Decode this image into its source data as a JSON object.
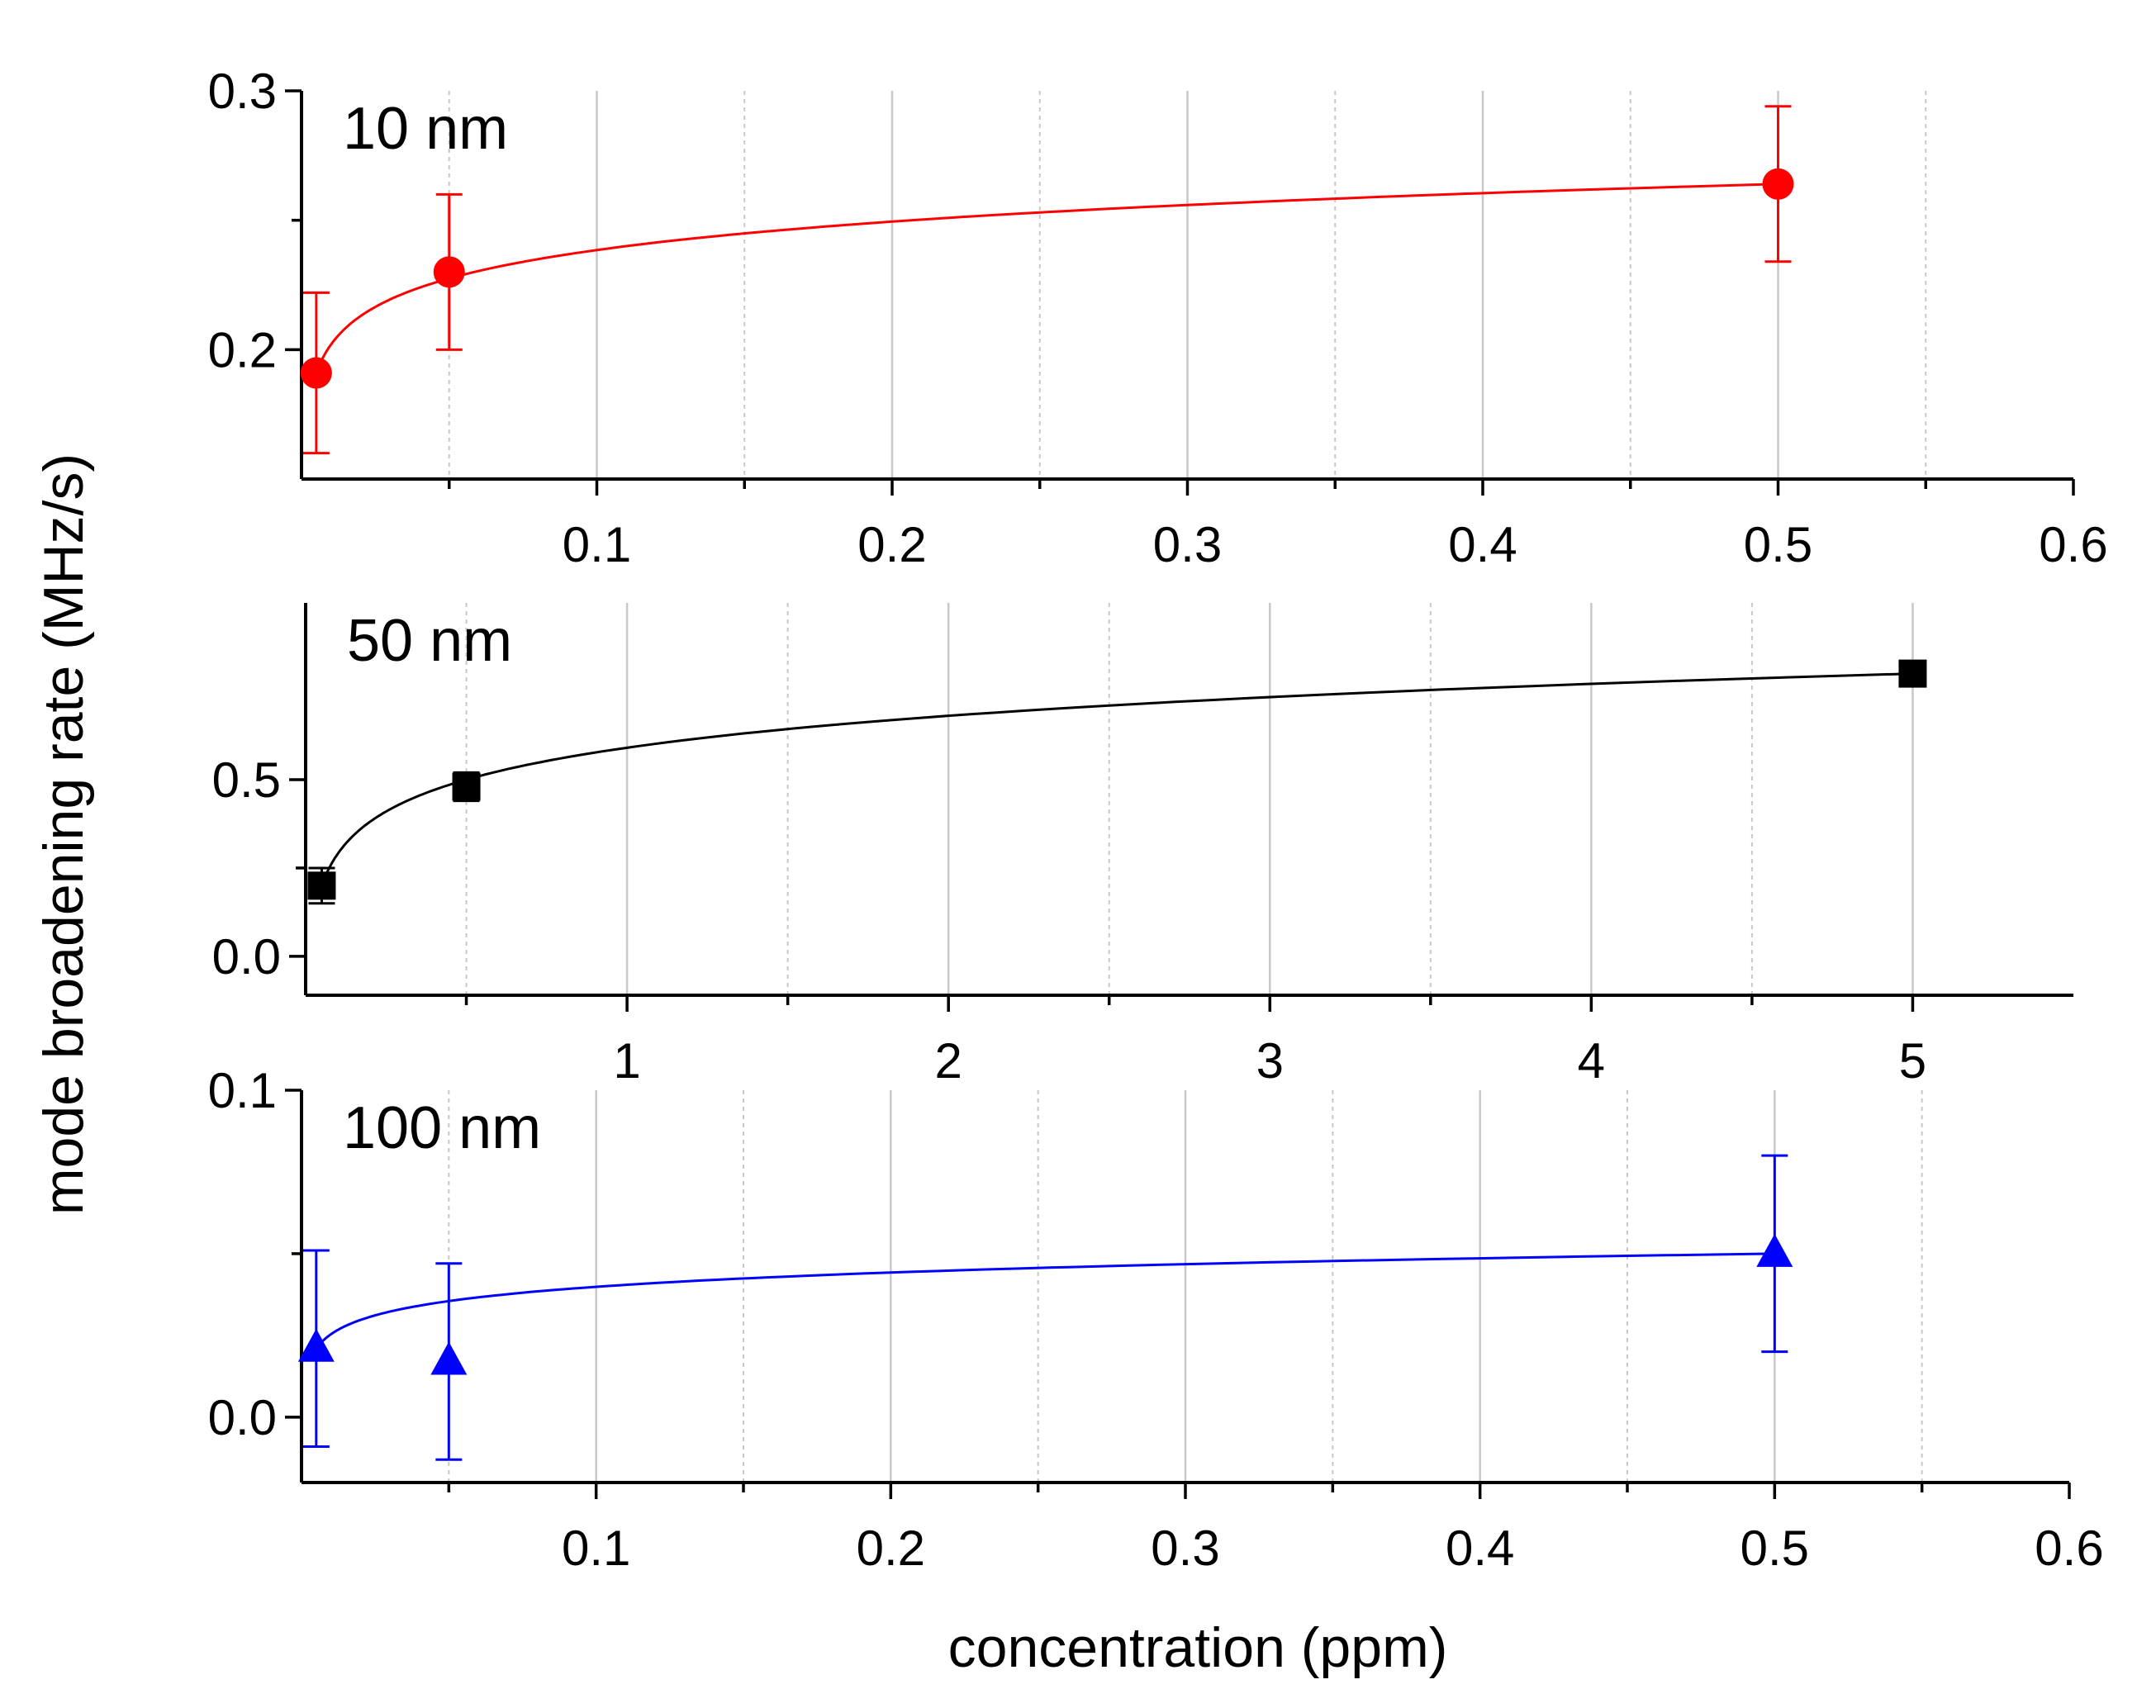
{
  "chart_data": [
    {
      "type": "scatter",
      "label": "10 nm",
      "color": "#ff0000",
      "marker": "circle",
      "ylim": [
        0.15,
        0.3
      ],
      "xlim": [
        0,
        0.6
      ],
      "yticks": [
        {
          "value": 0.2,
          "label": "0.2"
        },
        {
          "value": 0.3,
          "label": "0.3"
        }
      ],
      "xticks": [
        {
          "value": 0.1,
          "label": "0.1"
        },
        {
          "value": 0.2,
          "label": "0.2"
        },
        {
          "value": 0.3,
          "label": "0.3"
        },
        {
          "value": 0.4,
          "label": "0.4"
        },
        {
          "value": 0.5,
          "label": "0.5"
        },
        {
          "value": 0.6,
          "label": "0.6"
        }
      ],
      "x": [
        0.005,
        0.05,
        0.5
      ],
      "y": [
        0.191,
        0.23,
        0.264
      ],
      "yerr": [
        0.031,
        0.03,
        0.03
      ],
      "fit": "logarithmic",
      "grid": true
    },
    {
      "type": "scatter",
      "label": "50 nm",
      "color": "#000000",
      "marker": "square",
      "ylim": [
        -0.11,
        1.0
      ],
      "xlim": [
        0,
        5.5
      ],
      "yticks": [
        {
          "value": 0.0,
          "label": "0.0"
        },
        {
          "value": 0.5,
          "label": "0.5"
        }
      ],
      "xticks": [
        {
          "value": 1,
          "label": "1"
        },
        {
          "value": 2,
          "label": "2"
        },
        {
          "value": 3,
          "label": "3"
        },
        {
          "value": 4,
          "label": "4"
        },
        {
          "value": 5,
          "label": "5"
        }
      ],
      "x": [
        0.05,
        0.5,
        5
      ],
      "y": [
        0.2,
        0.48,
        0.8
      ],
      "yerr": [
        0.05,
        0.04,
        0.03
      ],
      "fit": "logarithmic",
      "grid": true
    },
    {
      "type": "scatter",
      "label": "100 nm",
      "color": "#0000ff",
      "marker": "triangle",
      "ylim": [
        -0.02,
        0.1
      ],
      "xlim": [
        0,
        0.6
      ],
      "yticks": [
        {
          "value": 0.0,
          "label": "0.0"
        },
        {
          "value": 0.1,
          "label": "0.1"
        }
      ],
      "xticks": [
        {
          "value": 0.1,
          "label": "0.1"
        },
        {
          "value": 0.2,
          "label": "0.2"
        },
        {
          "value": 0.3,
          "label": "0.3"
        },
        {
          "value": 0.4,
          "label": "0.4"
        },
        {
          "value": 0.5,
          "label": "0.5"
        },
        {
          "value": 0.6,
          "label": "0.6"
        }
      ],
      "x": [
        0.005,
        0.05,
        0.5
      ],
      "y": [
        0.021,
        0.017,
        0.05
      ],
      "yerr": [
        0.03,
        0.03,
        0.03
      ],
      "fit": "logarithmic",
      "grid": true
    }
  ],
  "ylabel": "mode broadening rate (MHz/s)",
  "xlabel": "concentration (ppm)"
}
